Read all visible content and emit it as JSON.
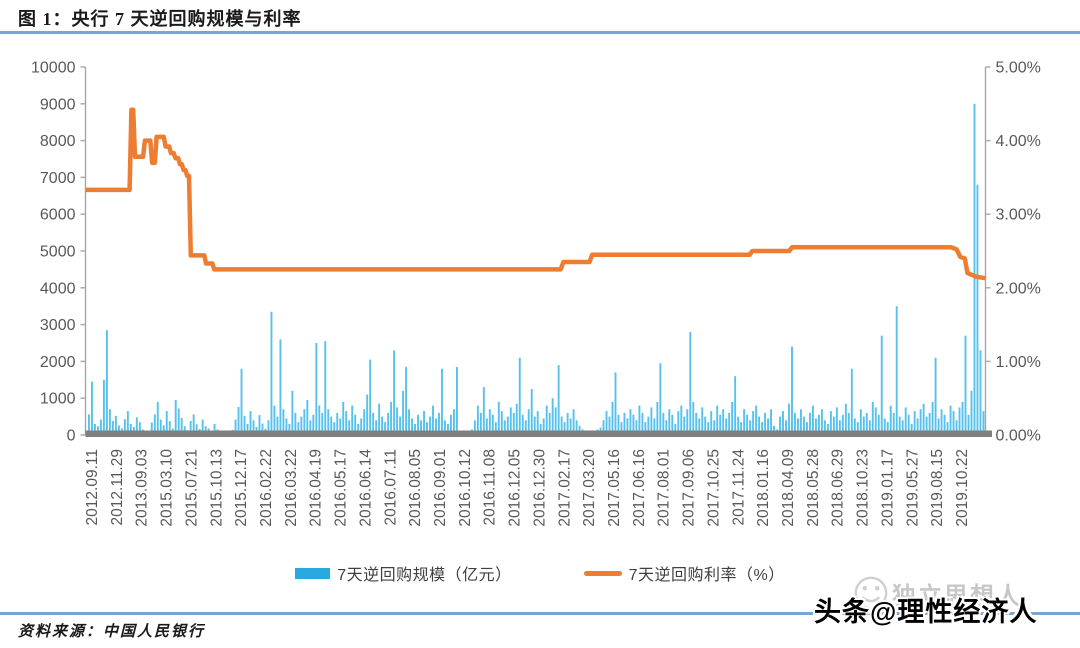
{
  "figure": {
    "title": "图 1：央行 7 天逆回购规模与利率",
    "source": "资料来源：中国人民银行",
    "watermark_front": "头条@理性经济人",
    "watermark_back": "独立思想人"
  },
  "legend": {
    "bars_label": "7天逆回购规模（亿元）",
    "line_label": "7天逆回购利率（%）"
  },
  "colors": {
    "bar": "#55C1EC",
    "bar_legend": "#29A9DF",
    "line": "#ED7D31",
    "axis_text": "#595959",
    "axis_line": "#A6A6A6",
    "baseline": "#7F7F7F",
    "rule": "#7AA4D6"
  },
  "chart_data": {
    "type": "bar+line",
    "title": "央行7天逆回购规模与利率",
    "grid": false,
    "legend_position": "bottom",
    "left_axis": {
      "label": "7天逆回购规模（亿元）",
      "min": 0,
      "max": 10000,
      "ticks": [
        "10000",
        "9000",
        "8000",
        "7000",
        "6000",
        "5000",
        "4000",
        "3000",
        "2000",
        "1000",
        "0"
      ]
    },
    "right_axis": {
      "label": "7天逆回购利率（%）",
      "min": 0,
      "max": 5,
      "ticks": [
        "5.00%",
        "4.00%",
        "3.00%",
        "2.00%",
        "1.00%",
        "0.00%"
      ]
    },
    "x_tick_labels": [
      "2012.09.11",
      "2012.11.29",
      "2013.09.03",
      "2015.03.10",
      "2015.07.21",
      "2015.10.13",
      "2015.12.17",
      "2016.02.22",
      "2016.03.22",
      "2016.04.19",
      "2016.05.17",
      "2016.06.14",
      "2016.07.11",
      "2016.08.05",
      "2016.09.01",
      "2016.10.12",
      "2016.11.08",
      "2016.12.05",
      "2016.12.30",
      "2017.02.17",
      "2017.03.20",
      "2017.05.16",
      "2017.06.16",
      "2017.08.01",
      "2017.09.06",
      "2017.10.25",
      "2017.11.24",
      "2018.01.16",
      "2018.04.09",
      "2018.05.28",
      "2018.06.29",
      "2018.10.23",
      "2019.01.17",
      "2019.05.27",
      "2019.08.15",
      "2019.10.22"
    ],
    "bars_name": "7天逆回购规模（亿元）",
    "bars": [
      560,
      1450,
      300,
      240,
      420,
      1500,
      2850,
      700,
      380,
      520,
      260,
      180,
      430,
      650,
      300,
      220,
      480,
      350,
      150,
      90,
      120,
      340,
      560,
      900,
      420,
      260,
      650,
      380,
      180,
      950,
      720,
      460,
      240,
      130,
      380,
      560,
      290,
      160,
      420,
      240,
      180,
      90,
      300,
      150,
      80,
      60,
      110,
      90,
      140,
      420,
      760,
      1800,
      520,
      300,
      650,
      400,
      220,
      540,
      310,
      170,
      400,
      3350,
      800,
      500,
      2600,
      700,
      450,
      300,
      1200,
      600,
      350,
      500,
      700,
      950,
      400,
      550,
      2500,
      800,
      600,
      2550,
      700,
      500,
      350,
      600,
      450,
      900,
      650,
      400,
      800,
      550,
      300,
      450,
      700,
      1100,
      2050,
      600,
      400,
      850,
      500,
      350,
      600,
      900,
      2300,
      750,
      500,
      1200,
      1850,
      700,
      450,
      300,
      550,
      400,
      650,
      350,
      500,
      800,
      450,
      600,
      1800,
      400,
      300,
      550,
      700,
      1850,
      100,
      0,
      60,
      0,
      150,
      400,
      800,
      600,
      1300,
      450,
      700,
      550,
      350,
      900,
      650,
      400,
      500,
      750,
      600,
      850,
      2100,
      550,
      400,
      700,
      1250,
      500,
      650,
      300,
      450,
      800,
      600,
      1000,
      750,
      1900,
      500,
      350,
      600,
      450,
      700,
      400,
      250,
      150,
      100,
      60,
      120,
      80,
      150,
      200,
      400,
      650,
      500,
      900,
      1700,
      550,
      350,
      600,
      450,
      700,
      550,
      400,
      800,
      600,
      350,
      500,
      750,
      450,
      900,
      1950,
      600,
      400,
      700,
      550,
      300,
      650,
      800,
      500,
      700,
      2800,
      900,
      600,
      450,
      750,
      500,
      350,
      650,
      400,
      800,
      550,
      700,
      450,
      600,
      900,
      1600,
      500,
      350,
      700,
      550,
      400,
      650,
      800,
      500,
      350,
      600,
      450,
      700,
      250,
      150,
      500,
      650,
      400,
      850,
      2400,
      600,
      450,
      700,
      500,
      350,
      600,
      800,
      450,
      550,
      700,
      400,
      300,
      650,
      500,
      750,
      400,
      550,
      850,
      600,
      1800,
      450,
      350,
      700,
      500,
      600,
      400,
      900,
      750,
      550,
      2700,
      450,
      350,
      800,
      600,
      3500,
      500,
      400,
      750,
      550,
      300,
      650,
      450,
      700,
      850,
      500,
      600,
      900,
      2100,
      450,
      700,
      550,
      350,
      800,
      650,
      400,
      750,
      900,
      2700,
      550,
      1200,
      9000,
      6800,
      2300,
      650
    ],
    "rate_name": "7天逆回购利率（%）",
    "rate_breakpoints_fraction_percent": [
      [
        0,
        3.33
      ],
      [
        0.049,
        3.33
      ],
      [
        0.051,
        4.42
      ],
      [
        0.053,
        4.42
      ],
      [
        0.055,
        3.78
      ],
      [
        0.064,
        3.78
      ],
      [
        0.066,
        4.0
      ],
      [
        0.072,
        4.0
      ],
      [
        0.074,
        3.7
      ],
      [
        0.077,
        3.7
      ],
      [
        0.079,
        4.05
      ],
      [
        0.087,
        4.05
      ],
      [
        0.089,
        3.92
      ],
      [
        0.093,
        3.92
      ],
      [
        0.095,
        3.83
      ],
      [
        0.098,
        3.83
      ],
      [
        0.1,
        3.76
      ],
      [
        0.103,
        3.76
      ],
      [
        0.105,
        3.68
      ],
      [
        0.107,
        3.68
      ],
      [
        0.109,
        3.6
      ],
      [
        0.111,
        3.6
      ],
      [
        0.113,
        3.52
      ],
      [
        0.115,
        3.52
      ],
      [
        0.117,
        2.44
      ],
      [
        0.132,
        2.44
      ],
      [
        0.134,
        2.33
      ],
      [
        0.141,
        2.33
      ],
      [
        0.143,
        2.25
      ],
      [
        0.528,
        2.25
      ],
      [
        0.531,
        2.35
      ],
      [
        0.56,
        2.35
      ],
      [
        0.563,
        2.45
      ],
      [
        0.738,
        2.45
      ],
      [
        0.741,
        2.5
      ],
      [
        0.782,
        2.5
      ],
      [
        0.785,
        2.55
      ],
      [
        0.962,
        2.55
      ],
      [
        0.968,
        2.52
      ],
      [
        0.972,
        2.42
      ],
      [
        0.977,
        2.4
      ],
      [
        0.98,
        2.2
      ],
      [
        0.99,
        2.15
      ],
      [
        1,
        2.13
      ]
    ]
  }
}
